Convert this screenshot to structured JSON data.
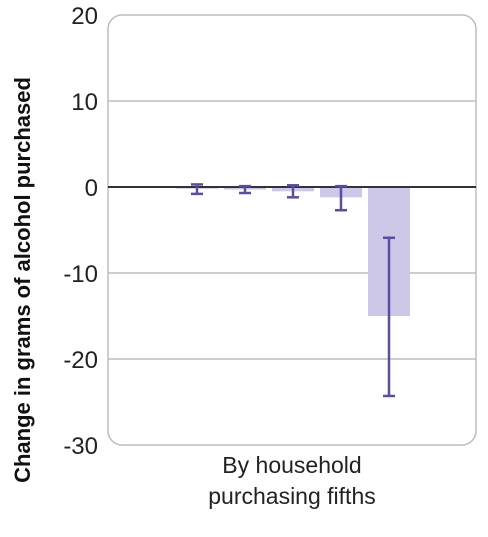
{
  "chart_data": {
    "type": "bar",
    "title": "",
    "ylabel": "Change in grams of alcohol purchased",
    "xlabel_lines": [
      "By household",
      "purchasing fifths"
    ],
    "ylim": [
      -30,
      20
    ],
    "yticks": [
      20,
      10,
      0,
      -10,
      -20,
      -30
    ],
    "ytick_labels": [
      "20",
      "10",
      "0",
      "-10",
      "-20",
      "-30"
    ],
    "grid": true,
    "bar_color": "#cdc8e8",
    "error_color": "#5a4f9e",
    "bars": [
      {
        "value": -0.2,
        "err_low": -0.8,
        "err_high": 0.3
      },
      {
        "value": -0.3,
        "err_low": -0.7,
        "err_high": 0.1
      },
      {
        "value": -0.5,
        "err_low": -1.2,
        "err_high": 0.2
      },
      {
        "value": -1.2,
        "err_low": -2.7,
        "err_high": 0.1
      },
      {
        "value": -15.0,
        "err_low": -24.3,
        "err_high": -5.9
      }
    ]
  }
}
